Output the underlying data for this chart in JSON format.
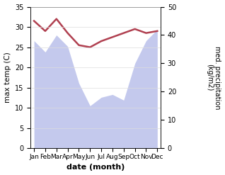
{
  "months": [
    "Jan",
    "Feb",
    "Mar",
    "Apr",
    "May",
    "Jun",
    "Jul",
    "Aug",
    "Sep",
    "Oct",
    "Nov",
    "Dec"
  ],
  "x": [
    0,
    1,
    2,
    3,
    4,
    5,
    6,
    7,
    8,
    9,
    10,
    11
  ],
  "temp": [
    31.5,
    29.0,
    32.0,
    28.5,
    25.5,
    25.0,
    26.5,
    27.5,
    28.5,
    29.5,
    28.5,
    29.0
  ],
  "precip": [
    38,
    34,
    40,
    36,
    23,
    15,
    18,
    19,
    17,
    30,
    38,
    42
  ],
  "temp_ylim": [
    0,
    35
  ],
  "precip_ylim": [
    0,
    50
  ],
  "temp_color": "#b04050",
  "fill_color": "#b0b8e8",
  "fill_alpha": 0.75,
  "xlabel": "date (month)",
  "ylabel_left": "max temp (C)",
  "ylabel_right": "med. precipitation\n(kg/m2)",
  "temp_yticks": [
    0,
    5,
    10,
    15,
    20,
    25,
    30,
    35
  ],
  "precip_yticks": [
    0,
    10,
    20,
    30,
    40,
    50
  ],
  "background_color": "#ffffff",
  "line_width": 1.8,
  "grid_color": "#dddddd"
}
